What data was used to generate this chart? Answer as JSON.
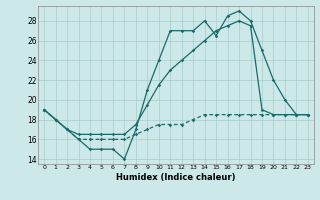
{
  "title": "",
  "xlabel": "Humidex (Indice chaleur)",
  "ylabel": "",
  "bg_color": "#cce8e8",
  "grid_color": "#aacccc",
  "line_color": "#1a6b6b",
  "xlim": [
    -0.5,
    23.5
  ],
  "ylim": [
    13.5,
    29.5
  ],
  "xticks": [
    0,
    1,
    2,
    3,
    4,
    5,
    6,
    7,
    8,
    9,
    10,
    11,
    12,
    13,
    14,
    15,
    16,
    17,
    18,
    19,
    20,
    21,
    22,
    23
  ],
  "yticks": [
    14,
    16,
    18,
    20,
    22,
    24,
    26,
    28
  ],
  "line1_x": [
    0,
    1,
    2,
    3,
    4,
    5,
    6,
    7,
    8,
    9,
    10,
    11,
    12,
    13,
    14,
    15,
    16,
    17,
    18,
    19,
    20,
    21,
    22,
    23
  ],
  "line1_y": [
    19.0,
    18.0,
    17.0,
    16.0,
    15.0,
    15.0,
    15.0,
    14.0,
    17.0,
    21.0,
    24.0,
    27.0,
    27.0,
    27.0,
    28.0,
    26.5,
    28.5,
    29.0,
    28.0,
    25.0,
    22.0,
    20.0,
    18.5,
    18.5
  ],
  "line2_x": [
    0,
    1,
    2,
    3,
    4,
    5,
    6,
    7,
    8,
    9,
    10,
    11,
    12,
    13,
    14,
    15,
    16,
    17,
    18,
    19,
    20,
    21,
    22,
    23
  ],
  "line2_y": [
    19.0,
    18.0,
    17.0,
    16.5,
    16.5,
    16.5,
    16.5,
    16.5,
    17.5,
    19.5,
    21.5,
    23.0,
    24.0,
    25.0,
    26.0,
    27.0,
    27.5,
    28.0,
    27.5,
    19.0,
    18.5,
    18.5,
    18.5,
    18.5
  ],
  "line3_x": [
    0,
    1,
    2,
    3,
    4,
    5,
    6,
    7,
    8,
    9,
    10,
    11,
    12,
    13,
    14,
    15,
    16,
    17,
    18,
    19,
    20,
    21,
    22,
    23
  ],
  "line3_y": [
    19.0,
    18.0,
    17.0,
    16.0,
    16.0,
    16.0,
    16.0,
    16.0,
    16.5,
    17.0,
    17.5,
    17.5,
    17.5,
    18.0,
    18.5,
    18.5,
    18.5,
    18.5,
    18.5,
    18.5,
    18.5,
    18.5,
    18.5,
    18.5
  ]
}
